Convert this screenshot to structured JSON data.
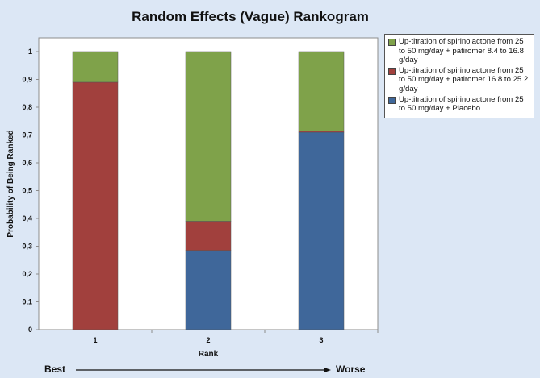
{
  "chart_data": {
    "type": "bar",
    "stacked": true,
    "title": "Random Effects (Vague) Rankogram",
    "xlabel": "Rank",
    "ylabel": "Probability of Being Ranked",
    "categories": [
      "1",
      "2",
      "3"
    ],
    "ylim": [
      0,
      1
    ],
    "yticks": [
      "0",
      "0,1",
      "0,2",
      "0,3",
      "0,4",
      "0,5",
      "0,6",
      "0,7",
      "0,8",
      "0,9",
      "1"
    ],
    "series": [
      {
        "name": "Up-titration of spirinolactone from 25 to 50 mg/day + Placebo",
        "color": "#3f679a",
        "values": [
          0.0,
          0.285,
          0.71
        ]
      },
      {
        "name": "Up-titration of spirinolactone from 25 to 50 mg/day + patiromer 16.8 to 25.2 g/day",
        "color": "#a1403d",
        "values": [
          0.89,
          0.105,
          0.005
        ]
      },
      {
        "name": "Up-titration of spirinolactone from 25 to 50 mg/day + patiromer 8.4  to 16.8 g/day",
        "color": "#7fa24a",
        "values": [
          0.11,
          0.61,
          0.285
        ]
      }
    ],
    "legend_order": [
      2,
      1,
      0
    ],
    "best_label": "Best",
    "worse_label": "Worse"
  }
}
